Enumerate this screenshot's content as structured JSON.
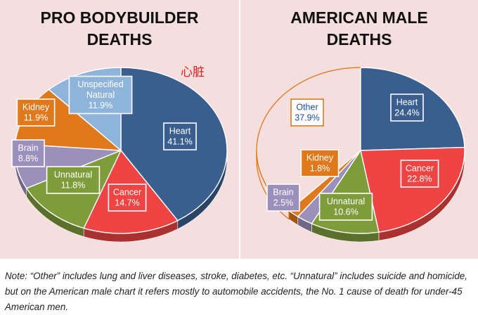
{
  "chart_data": [
    {
      "type": "pie",
      "title": "PRO BODYBUILDER DEATHS",
      "title_lines": [
        "PRO BODYBUILDER",
        "DEATHS"
      ],
      "slices": [
        {
          "name": "Heart",
          "value": 41.1,
          "label": "41.1%",
          "color": "#3a5f8f"
        },
        {
          "name": "Cancer",
          "value": 14.7,
          "label": "14.7%",
          "color": "#ee4444"
        },
        {
          "name": "Unnatural",
          "value": 11.8,
          "label": "11.8%",
          "color": "#7e9c3a"
        },
        {
          "name": "Brain",
          "value": 8.8,
          "label": "8.8%",
          "color": "#9b8fbc"
        },
        {
          "name": "Kidney",
          "value": 11.9,
          "label": "11.9%",
          "color": "#e0791b"
        },
        {
          "name": "Unspecified Natural",
          "value": 11.9,
          "label": "11.9%",
          "color": "#8fb4dc"
        }
      ],
      "annotation": "心脏"
    },
    {
      "type": "pie",
      "title": "AMERICAN MALE DEATHS",
      "title_lines": [
        "AMERICAN MALE",
        "DEATHS"
      ],
      "slices": [
        {
          "name": "Heart",
          "value": 24.4,
          "label": "24.4%",
          "color": "#3a5f8f"
        },
        {
          "name": "Cancer",
          "value": 22.8,
          "label": "22.8%",
          "color": "#ee4444"
        },
        {
          "name": "Unnatural",
          "value": 10.6,
          "label": "10.6%",
          "color": "#7e9c3a"
        },
        {
          "name": "Brain",
          "value": 2.5,
          "label": "2.5%",
          "color": "#9b8fbc"
        },
        {
          "name": "Kidney",
          "value": 1.8,
          "label": "1.8%",
          "color": "#e0791b"
        },
        {
          "name": "Other",
          "value": 37.9,
          "label": "37.9%",
          "color": "transparent"
        }
      ]
    }
  ],
  "note": "Note: “Other” includes lung and liver diseases, stroke, diabetes, etc. “Unnatural” includes suicide and homicide, but on the American male chart it refers mostly to automobile accidents, the No. 1 cause of death for under-45 American men."
}
